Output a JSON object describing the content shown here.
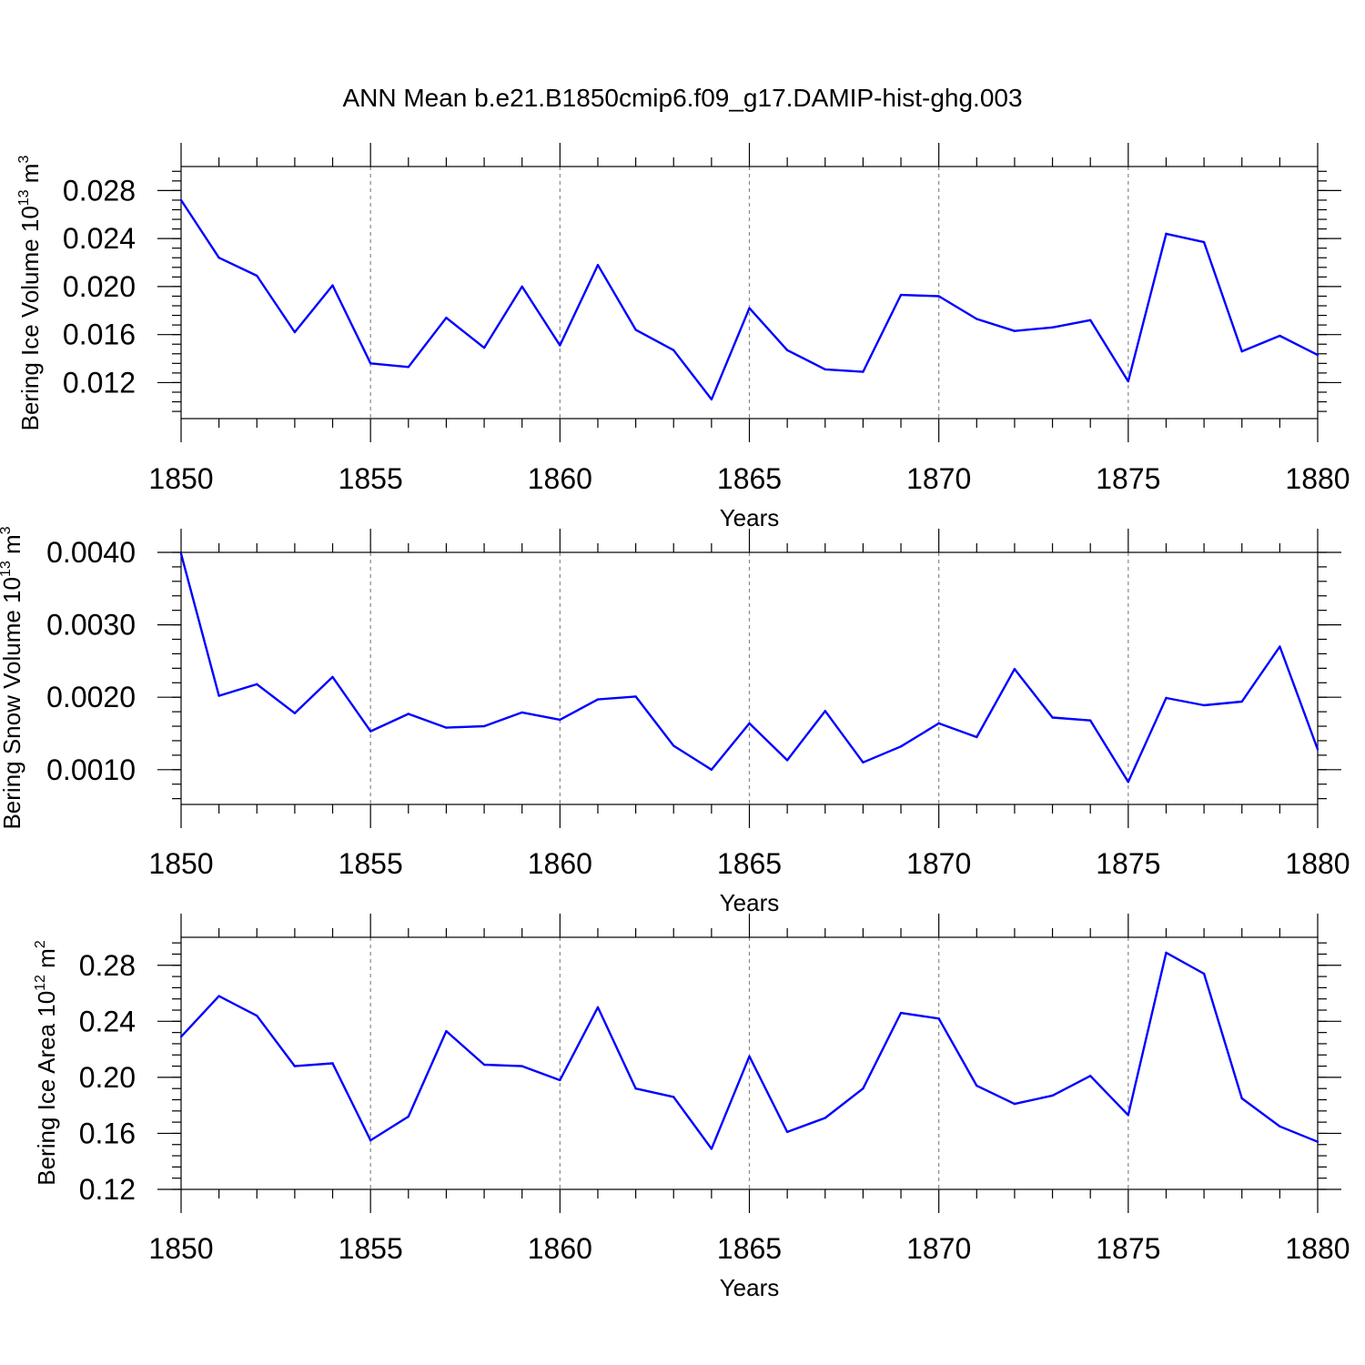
{
  "figure_title": "ANN Mean b.e21.B1850cmip6.f09_g17.DAMIP-hist-ghg.003",
  "series_color": "#0000ff",
  "chart_data": [
    {
      "type": "line",
      "title": "",
      "xlabel": "Years",
      "ylabel_main": "Bering Ice Volume 10",
      "ylabel_exp": "13",
      "ylabel_unit": "m",
      "ylabel_unit_exp": "3",
      "xlim": [
        1850,
        1880
      ],
      "ylim": [
        0.009,
        0.03
      ],
      "xticks": [
        1850,
        1855,
        1860,
        1865,
        1870,
        1875,
        1880
      ],
      "xtick_labels": [
        "1850",
        "1855",
        "1860",
        "1865",
        "1870",
        "1875",
        "1880"
      ],
      "yticks": [
        0.012,
        0.016,
        0.02,
        0.024,
        0.028
      ],
      "ytick_labels": [
        "0.012",
        "0.016",
        "0.020",
        "0.024",
        "0.028"
      ],
      "yminor_step": 0.0008,
      "x": [
        1850,
        1851,
        1852,
        1853,
        1854,
        1855,
        1856,
        1857,
        1858,
        1859,
        1860,
        1861,
        1862,
        1863,
        1864,
        1865,
        1866,
        1867,
        1868,
        1869,
        1870,
        1871,
        1872,
        1873,
        1874,
        1875,
        1876,
        1877,
        1878,
        1879,
        1880
      ],
      "values": [
        0.0272,
        0.0224,
        0.0209,
        0.0162,
        0.0201,
        0.0136,
        0.0133,
        0.0174,
        0.0149,
        0.02,
        0.0151,
        0.0218,
        0.0164,
        0.0147,
        0.0106,
        0.0182,
        0.0147,
        0.0131,
        0.0129,
        0.0193,
        0.0192,
        0.0173,
        0.0163,
        0.0166,
        0.0172,
        0.0121,
        0.0244,
        0.0237,
        0.0146,
        0.0159,
        0.0143
      ]
    },
    {
      "type": "line",
      "title": "",
      "xlabel": "Years",
      "ylabel_main": "Bering Snow Volume 10",
      "ylabel_exp": "13",
      "ylabel_unit": "m",
      "ylabel_unit_exp": "3",
      "xlim": [
        1850,
        1880
      ],
      "ylim": [
        0.00052,
        0.004
      ],
      "xticks": [
        1850,
        1855,
        1860,
        1865,
        1870,
        1875,
        1880
      ],
      "xtick_labels": [
        "1850",
        "1855",
        "1860",
        "1865",
        "1870",
        "1875",
        "1880"
      ],
      "yticks": [
        0.001,
        0.002,
        0.003,
        0.004
      ],
      "ytick_labels": [
        "0.0010",
        "0.0020",
        "0.0030",
        "0.0040"
      ],
      "yminor_step": 0.0002,
      "x": [
        1850,
        1851,
        1852,
        1853,
        1854,
        1855,
        1856,
        1857,
        1858,
        1859,
        1860,
        1861,
        1862,
        1863,
        1864,
        1865,
        1866,
        1867,
        1868,
        1869,
        1870,
        1871,
        1872,
        1873,
        1874,
        1875,
        1876,
        1877,
        1878,
        1879,
        1880
      ],
      "values": [
        0.00398,
        0.00202,
        0.00218,
        0.00178,
        0.00228,
        0.00153,
        0.00177,
        0.00158,
        0.0016,
        0.00179,
        0.00169,
        0.00197,
        0.00201,
        0.00133,
        0.001,
        0.00164,
        0.00113,
        0.00181,
        0.0011,
        0.00132,
        0.00164,
        0.00145,
        0.00239,
        0.00172,
        0.00168,
        0.00083,
        0.00199,
        0.00189,
        0.00194,
        0.0027,
        0.00128
      ]
    },
    {
      "type": "line",
      "title": "",
      "xlabel": "Years",
      "ylabel_main": "Bering Ice Area 10",
      "ylabel_exp": "12",
      "ylabel_unit": "m",
      "ylabel_unit_exp": "2",
      "xlim": [
        1850,
        1880
      ],
      "ylim": [
        0.12,
        0.3
      ],
      "xticks": [
        1850,
        1855,
        1860,
        1865,
        1870,
        1875,
        1880
      ],
      "xtick_labels": [
        "1850",
        "1855",
        "1860",
        "1865",
        "1870",
        "1875",
        "1880"
      ],
      "yticks": [
        0.12,
        0.16,
        0.2,
        0.24,
        0.28
      ],
      "ytick_labels": [
        "0.12",
        "0.16",
        "0.20",
        "0.24",
        "0.28"
      ],
      "yminor_step": 0.008,
      "x": [
        1850,
        1851,
        1852,
        1853,
        1854,
        1855,
        1856,
        1857,
        1858,
        1859,
        1860,
        1861,
        1862,
        1863,
        1864,
        1865,
        1866,
        1867,
        1868,
        1869,
        1870,
        1871,
        1872,
        1873,
        1874,
        1875,
        1876,
        1877,
        1878,
        1879,
        1880
      ],
      "values": [
        0.229,
        0.258,
        0.244,
        0.208,
        0.21,
        0.155,
        0.172,
        0.233,
        0.209,
        0.208,
        0.198,
        0.25,
        0.192,
        0.186,
        0.149,
        0.215,
        0.161,
        0.171,
        0.192,
        0.246,
        0.242,
        0.194,
        0.181,
        0.187,
        0.201,
        0.173,
        0.289,
        0.274,
        0.185,
        0.165,
        0.154
      ]
    }
  ]
}
